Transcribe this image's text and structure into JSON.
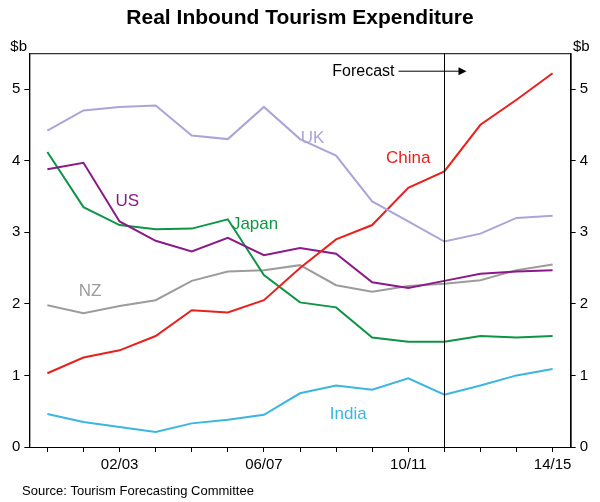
{
  "chart_data": {
    "type": "line",
    "title": "Real Inbound Tourism Expenditure",
    "ylabel": "$b",
    "y2label": "$b",
    "source": "Source: Tourism Forecasting Committee",
    "categories": [
      null,
      null,
      "02/03",
      null,
      null,
      null,
      "06/07",
      null,
      null,
      null,
      "10/11",
      null,
      null,
      null,
      "14/15"
    ],
    "series": [
      {
        "name": "UK",
        "color": "#aaa5d9",
        "values": [
          4.42,
          4.7,
          4.75,
          4.77,
          4.35,
          4.3,
          4.75,
          4.3,
          4.07,
          3.43,
          3.15,
          2.87,
          2.98,
          3.2,
          3.23
        ]
      },
      {
        "name": "China",
        "color": "#e8201e",
        "values": [
          1.03,
          1.25,
          1.35,
          1.55,
          1.91,
          1.88,
          2.05,
          2.5,
          2.9,
          3.1,
          3.62,
          3.85,
          4.5,
          4.85,
          5.22
        ]
      },
      {
        "name": "US",
        "color": "#8b1a89",
        "values": [
          3.88,
          3.97,
          3.15,
          2.88,
          2.73,
          2.92,
          2.68,
          2.78,
          2.7,
          2.3,
          2.22,
          2.32,
          2.42,
          2.45,
          2.47
        ]
      },
      {
        "name": "Japan",
        "color": "#0f9446",
        "values": [
          4.12,
          3.35,
          3.1,
          3.04,
          3.05,
          3.18,
          2.4,
          2.02,
          1.95,
          1.53,
          1.47,
          1.47,
          1.55,
          1.53,
          1.55
        ]
      },
      {
        "name": "NZ",
        "color": "#9c9c9c",
        "values": [
          1.98,
          1.87,
          1.97,
          2.05,
          2.32,
          2.45,
          2.47,
          2.54,
          2.26,
          2.17,
          2.25,
          2.28,
          2.33,
          2.47,
          2.55
        ]
      },
      {
        "name": "India",
        "color": "#3bb5e3",
        "values": [
          0.46,
          0.35,
          0.28,
          0.21,
          0.33,
          0.38,
          0.45,
          0.75,
          0.86,
          0.8,
          0.96,
          0.73,
          0.86,
          1.0,
          1.09
        ]
      }
    ],
    "annotations": [
      {
        "label": "Forecast",
        "index": 11
      }
    ],
    "ylim": [
      0,
      5.5
    ],
    "yticks": [
      0,
      1,
      2,
      3,
      4,
      5
    ],
    "y2lim": [
      0,
      5.5
    ],
    "y2ticks": [
      0,
      1,
      2,
      3,
      4,
      5
    ],
    "grid": false
  }
}
